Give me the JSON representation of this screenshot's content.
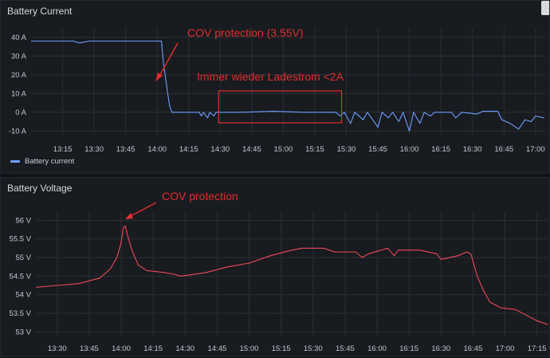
{
  "chart_data": [
    {
      "type": "line",
      "title": "Battery Current",
      "ylabel": "",
      "xlabel": "",
      "y_unit": "A",
      "ylim": [
        -12,
        45
      ],
      "y_ticks": [
        40,
        30,
        20,
        10,
        0,
        -10
      ],
      "y_tick_labels": [
        "40 A",
        "30 A",
        "20 A",
        "10 A",
        "0 A",
        "-10 A"
      ],
      "x_ticks": [
        "13:15",
        "13:30",
        "13:45",
        "14:00",
        "14:15",
        "14:30",
        "14:45",
        "15:00",
        "15:15",
        "15:30",
        "15:45",
        "16:00",
        "16:15",
        "16:30",
        "16:45",
        "17:00"
      ],
      "xlim": [
        "13:00",
        "17:05"
      ],
      "grid": true,
      "legend": "bottom-left",
      "color": "#6e9fff",
      "series": [
        {
          "name": "Battery current",
          "points": [
            [
              "13:00",
              38
            ],
            [
              "13:10",
              38
            ],
            [
              "13:20",
              38
            ],
            [
              "13:23",
              37
            ],
            [
              "13:28",
              38
            ],
            [
              "13:40",
              38
            ],
            [
              "13:50",
              38
            ],
            [
              "13:55",
              38
            ],
            [
              "14:00",
              38
            ],
            [
              "14:02",
              38
            ],
            [
              "14:03",
              26
            ],
            [
              "14:04",
              18
            ],
            [
              "14:05",
              10
            ],
            [
              "14:06",
              3
            ],
            [
              "14:07",
              0
            ],
            [
              "14:20",
              0
            ],
            [
              "14:21",
              -2
            ],
            [
              "14:22",
              0
            ],
            [
              "14:24",
              -3
            ],
            [
              "14:25",
              0
            ],
            [
              "14:27",
              -2
            ],
            [
              "14:28",
              0
            ],
            [
              "14:40",
              0
            ],
            [
              "14:55",
              0.5
            ],
            [
              "15:10",
              0
            ],
            [
              "15:25",
              0
            ],
            [
              "15:27",
              -2
            ],
            [
              "15:29",
              0
            ],
            [
              "15:32",
              -6
            ],
            [
              "15:34",
              0
            ],
            [
              "15:38",
              -4
            ],
            [
              "15:40",
              0
            ],
            [
              "15:45",
              -8
            ],
            [
              "15:47",
              0
            ],
            [
              "15:50",
              -3
            ],
            [
              "15:52",
              0
            ],
            [
              "15:55",
              -5
            ],
            [
              "15:57",
              0
            ],
            [
              "16:00",
              -10
            ],
            [
              "16:02",
              0
            ],
            [
              "16:05",
              -6
            ],
            [
              "16:07",
              0
            ],
            [
              "16:10",
              -2
            ],
            [
              "16:12",
              0
            ],
            [
              "16:20",
              0
            ],
            [
              "16:22",
              -3
            ],
            [
              "16:25",
              0
            ],
            [
              "16:32",
              -1
            ],
            [
              "16:35",
              0.5
            ],
            [
              "16:42",
              0.5
            ],
            [
              "16:44",
              -4
            ],
            [
              "16:48",
              -6
            ],
            [
              "16:52",
              -9
            ],
            [
              "16:55",
              -4
            ],
            [
              "16:58",
              -5
            ],
            [
              "17:00",
              -2
            ],
            [
              "17:04",
              -3
            ]
          ]
        }
      ],
      "annotations": [
        {
          "text": "COV protection (3.55V)"
        },
        {
          "text": "Immer wieder Ladestrom <2A"
        }
      ]
    },
    {
      "type": "line",
      "title": "Battery Voltage",
      "ylabel": "",
      "xlabel": "",
      "y_unit": "V",
      "ylim": [
        52.9,
        56.2
      ],
      "y_ticks": [
        56,
        55.5,
        55,
        54.5,
        54,
        53.5,
        53
      ],
      "y_tick_labels": [
        "56 V",
        "55.5 V",
        "55 V",
        "54.5 V",
        "54 V",
        "53.5 V",
        "53 V"
      ],
      "x_ticks": [
        "13:30",
        "13:45",
        "14:00",
        "14:15",
        "14:30",
        "14:45",
        "15:00",
        "15:15",
        "15:30",
        "15:45",
        "16:00",
        "16:15",
        "16:30",
        "16:45",
        "17:00",
        "17:15"
      ],
      "xlim": [
        "13:20",
        "17:20"
      ],
      "grid": true,
      "color": "#f2495c",
      "series": [
        {
          "name": "",
          "points": [
            [
              "13:20",
              54.2
            ],
            [
              "13:30",
              54.25
            ],
            [
              "13:40",
              54.3
            ],
            [
              "13:50",
              54.45
            ],
            [
              "13:55",
              54.7
            ],
            [
              "13:58",
              55.0
            ],
            [
              "14:00",
              55.4
            ],
            [
              "14:01",
              55.8
            ],
            [
              "14:02",
              55.85
            ],
            [
              "14:03",
              55.6
            ],
            [
              "14:05",
              55.2
            ],
            [
              "14:08",
              54.8
            ],
            [
              "14:12",
              54.65
            ],
            [
              "14:20",
              54.6
            ],
            [
              "14:25",
              54.55
            ],
            [
              "14:28",
              54.5
            ],
            [
              "14:40",
              54.6
            ],
            [
              "14:50",
              54.75
            ],
            [
              "15:00",
              54.85
            ],
            [
              "15:10",
              55.05
            ],
            [
              "15:20",
              55.2
            ],
            [
              "15:25",
              55.25
            ],
            [
              "15:35",
              55.25
            ],
            [
              "15:40",
              55.15
            ],
            [
              "15:50",
              55.15
            ],
            [
              "15:53",
              55.0
            ],
            [
              "15:56",
              55.1
            ],
            [
              "16:05",
              55.25
            ],
            [
              "16:08",
              55.05
            ],
            [
              "16:10",
              55.2
            ],
            [
              "16:20",
              55.2
            ],
            [
              "16:28",
              55.1
            ],
            [
              "16:30",
              54.95
            ],
            [
              "16:38",
              55.05
            ],
            [
              "16:42",
              55.15
            ],
            [
              "16:44",
              55.1
            ],
            [
              "16:47",
              54.5
            ],
            [
              "16:50",
              54.1
            ],
            [
              "16:53",
              53.8
            ],
            [
              "16:58",
              53.65
            ],
            [
              "17:05",
              53.6
            ],
            [
              "17:10",
              53.45
            ],
            [
              "17:15",
              53.3
            ],
            [
              "17:20",
              53.2
            ]
          ]
        }
      ],
      "annotations": [
        {
          "text": "COV protection"
        }
      ]
    }
  ]
}
